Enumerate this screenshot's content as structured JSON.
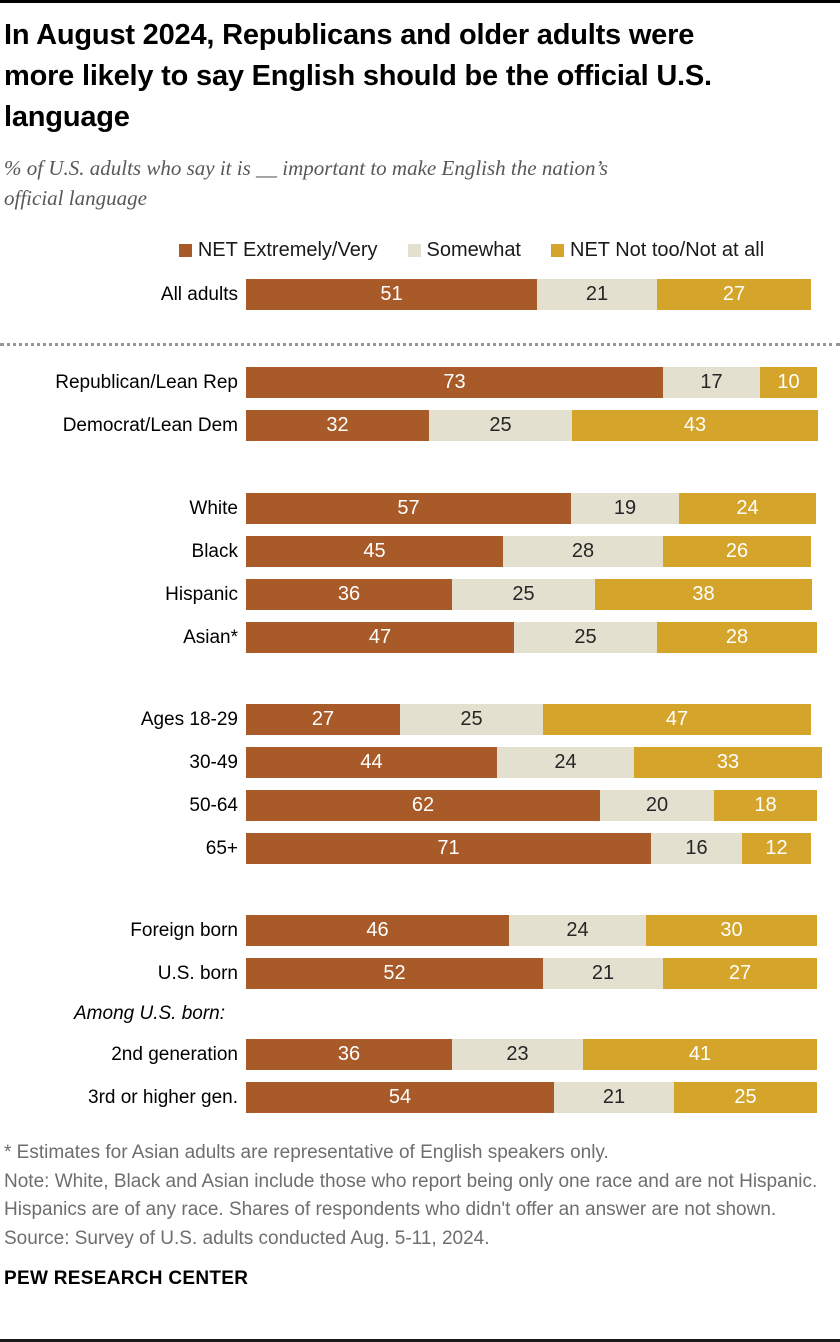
{
  "header": {
    "title_lines": [
      "In August 2024, Republicans and older adults were",
      "more likely to say English should be the official U.S.",
      "language"
    ],
    "subtitle_lines": [
      "% of U.S. adults who say it is __ important to make English the nation’s",
      "official language"
    ]
  },
  "chart_data": {
    "type": "bar",
    "stacked": true,
    "orientation": "horizontal",
    "unit": "percent",
    "axis_max": 100,
    "grid": false,
    "legend_position": "top",
    "legend": [
      {
        "label": "NET Extremely/Very",
        "color": "#A85A28",
        "text_color": "#FFFFFF"
      },
      {
        "label": "Somewhat",
        "color": "#E4E0D0",
        "text_color": "#262626"
      },
      {
        "label": "NET Not too/Not at all",
        "color": "#D4A42B",
        "text_color": "#FFFFFF"
      }
    ],
    "divider_after_group": 0,
    "groups": [
      {
        "heading": null,
        "rows": [
          {
            "label": "All adults",
            "values": [
              51,
              21,
              27
            ]
          }
        ]
      },
      {
        "heading": null,
        "rows": [
          {
            "label": "Republican/Lean Rep",
            "values": [
              73,
              17,
              10
            ]
          },
          {
            "label": "Democrat/Lean Dem",
            "values": [
              32,
              25,
              43
            ]
          }
        ]
      },
      {
        "heading": null,
        "rows": [
          {
            "label": "White",
            "values": [
              57,
              19,
              24
            ]
          },
          {
            "label": "Black",
            "values": [
              45,
              28,
              26
            ]
          },
          {
            "label": "Hispanic",
            "values": [
              36,
              25,
              38
            ]
          },
          {
            "label": "Asian*",
            "values": [
              47,
              25,
              28
            ]
          }
        ]
      },
      {
        "heading": null,
        "rows": [
          {
            "label": "Ages 18-29",
            "values": [
              27,
              25,
              47
            ]
          },
          {
            "label": "30-49",
            "values": [
              44,
              24,
              33
            ]
          },
          {
            "label": "50-64",
            "values": [
              62,
              20,
              18
            ]
          },
          {
            "label": "65+",
            "values": [
              71,
              16,
              12
            ]
          }
        ]
      },
      {
        "heading": null,
        "rows": [
          {
            "label": "Foreign born",
            "values": [
              46,
              24,
              30
            ]
          },
          {
            "label": "U.S. born",
            "values": [
              52,
              21,
              27
            ]
          }
        ]
      },
      {
        "heading": "Among U.S. born:",
        "rows": [
          {
            "label": "2nd generation",
            "values": [
              36,
              23,
              41
            ]
          },
          {
            "label": "3rd or higher gen.",
            "values": [
              54,
              21,
              25
            ]
          }
        ]
      }
    ]
  },
  "footer": {
    "asterisk_note": "* Estimates for Asian adults are representative of English speakers only.",
    "note": "Note: White, Black and Asian include those who report being only one race and are not Hispanic. Hispanics are of any race. Shares of respondents who didn't offer an answer are not shown.",
    "source": "Source: Survey of U.S. adults conducted Aug. 5-11, 2024.",
    "brand": "PEW RESEARCH CENTER"
  }
}
